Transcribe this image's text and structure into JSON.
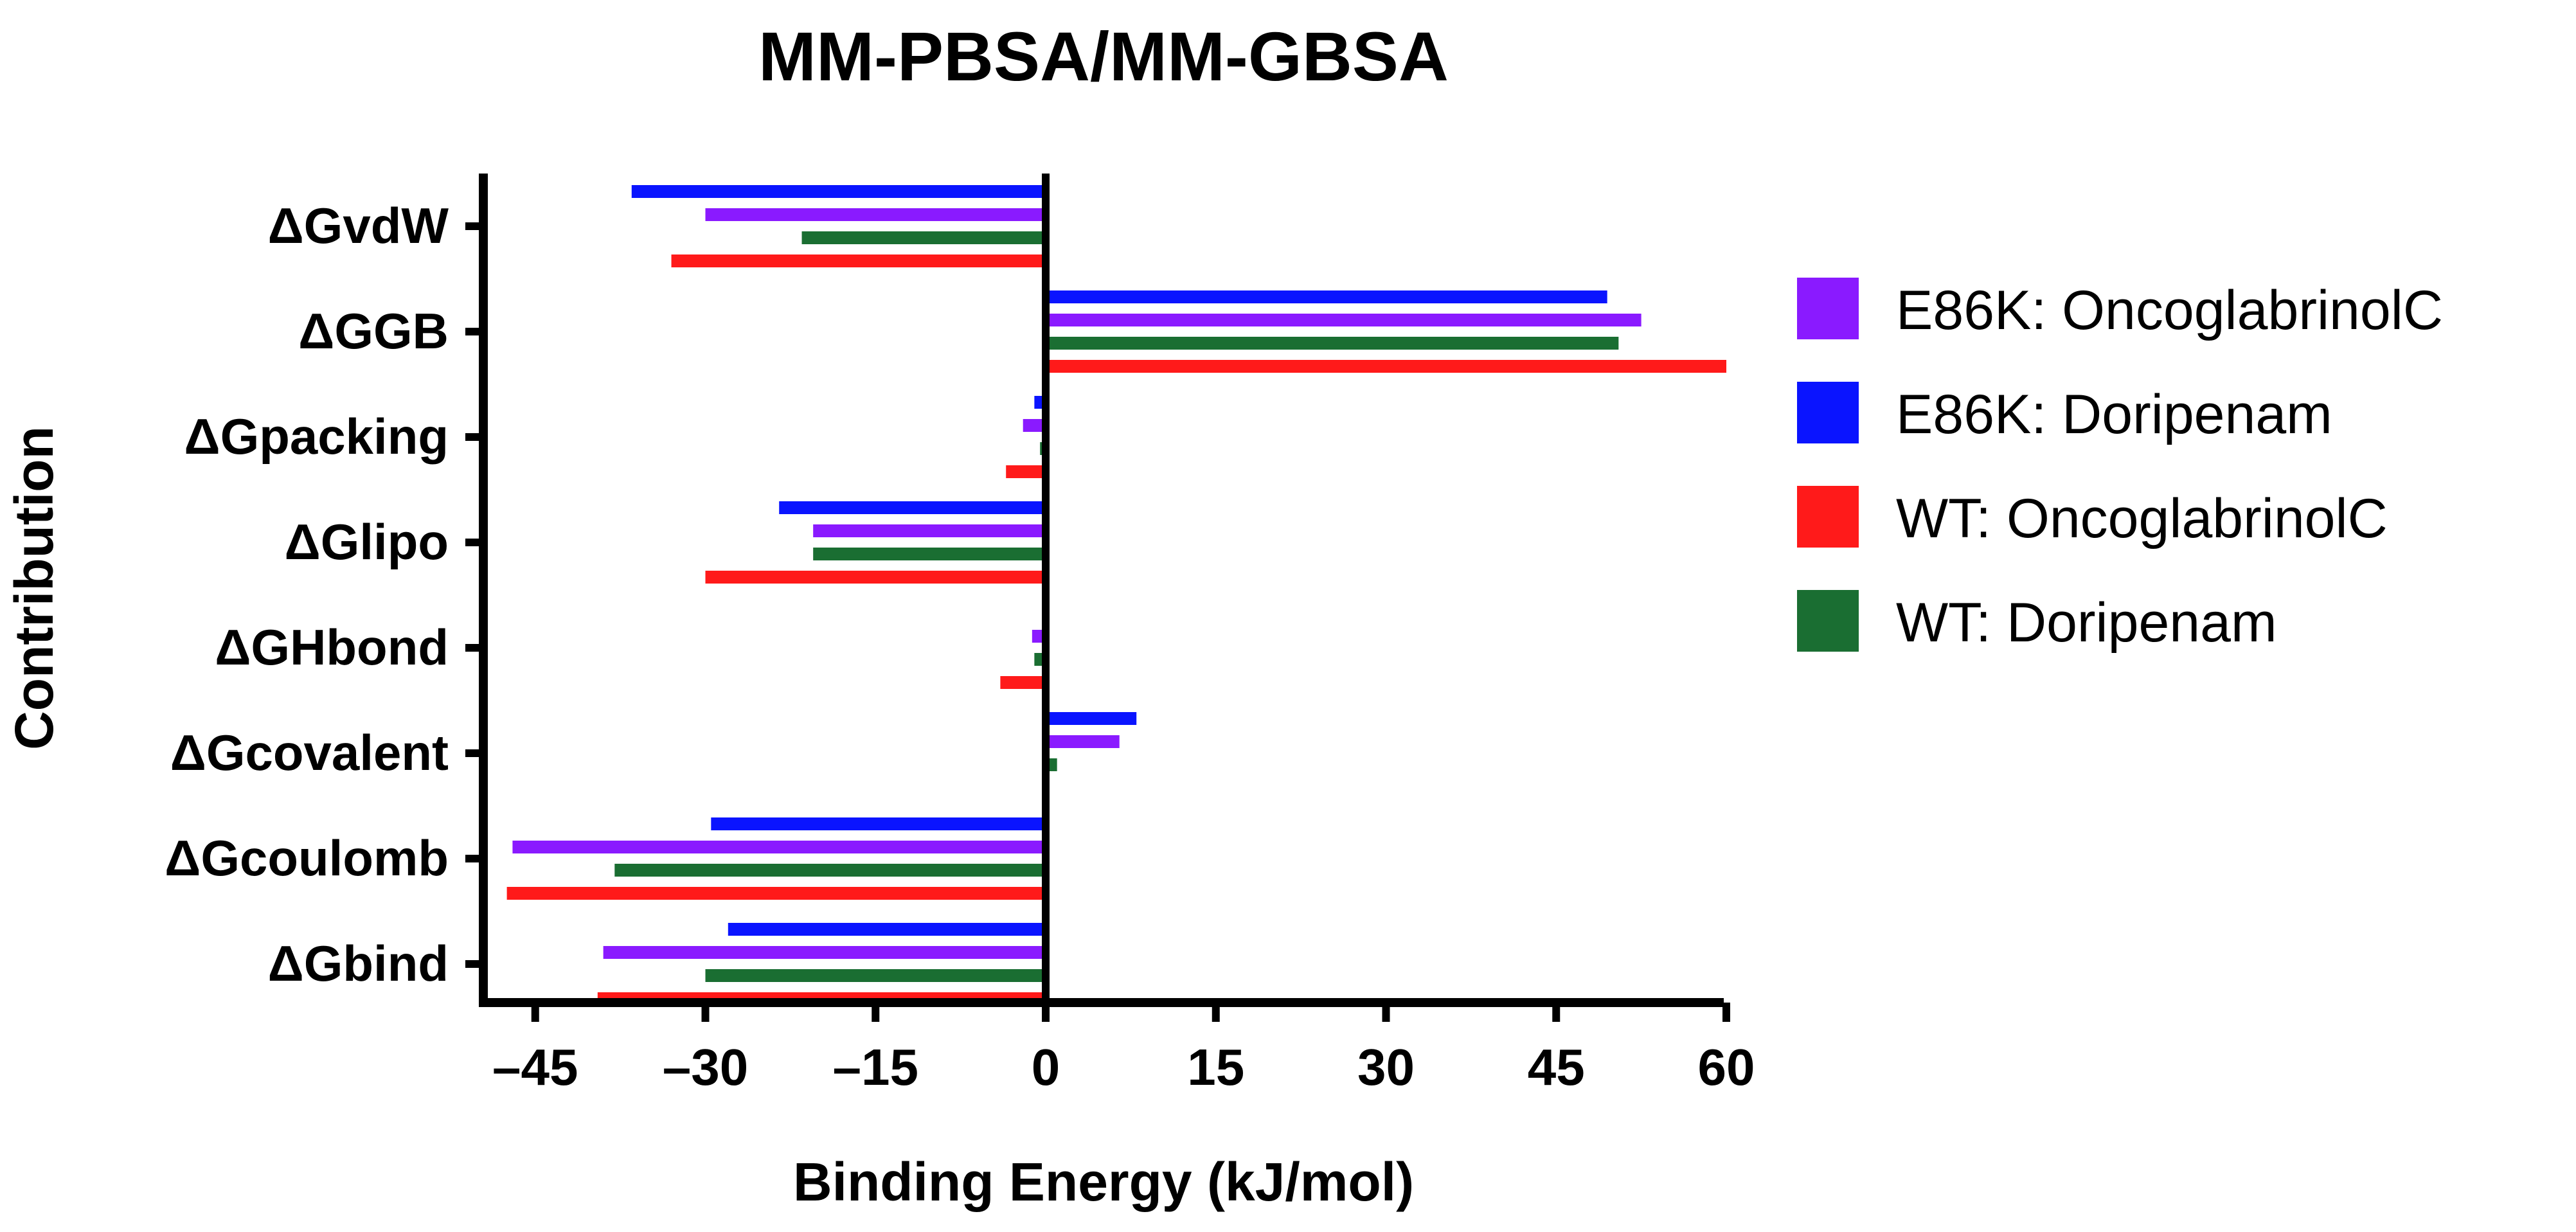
{
  "chart_data": {
    "type": "bar",
    "orientation": "horizontal",
    "title": "MM-PBSA/MM-GBSA",
    "xlabel": "Binding Energy (kJ/mol)",
    "ylabel": "Contribution",
    "xlim": [
      -48,
      60
    ],
    "xticks": [
      "–45",
      "–30",
      "–15",
      "0",
      "15",
      "30",
      "45",
      "60"
    ],
    "xtick_values": [
      -45,
      -30,
      -15,
      0,
      15,
      30,
      45,
      60
    ],
    "categories": [
      "ΔGvdW",
      "ΔGGB",
      "ΔGpacking",
      "ΔGlipo",
      "ΔGHbond",
      "ΔGcovalent",
      "ΔGcoulomb",
      "ΔGbind"
    ],
    "series": [
      {
        "name": "E86K: Doripenam",
        "color": "#0a14ff",
        "values": [
          -36.5,
          49.5,
          -1.0,
          -23.5,
          0,
          8.0,
          -29.5,
          -28.0
        ]
      },
      {
        "name": "E86K: OncoglabrinolC",
        "color": "#8a1aff",
        "values": [
          -30.0,
          52.5,
          -2.0,
          -20.5,
          -1.2,
          6.5,
          -47.0,
          -39.0
        ]
      },
      {
        "name": "WT: Doripenam",
        "color": "#1a6e32",
        "values": [
          -21.5,
          50.5,
          -0.5,
          -20.5,
          -1.0,
          1.0,
          -38.0,
          -30.0
        ]
      },
      {
        "name": "WT: OncoglabrinolC",
        "color": "#ff1a1a",
        "values": [
          -33.0,
          60.0,
          -3.5,
          -30.0,
          -4.0,
          0,
          -47.5,
          -39.5
        ]
      }
    ],
    "legend": [
      {
        "name": "E86K: OncoglabrinolC",
        "color": "#8a1aff"
      },
      {
        "name": "E86K: Doripenam",
        "color": "#0a14ff"
      },
      {
        "name": "WT: OncoglabrinolC",
        "color": "#ff1a1a"
      },
      {
        "name": "WT: Doripenam",
        "color": "#1a6e32"
      }
    ],
    "legend_position": "right",
    "grid": false
  }
}
